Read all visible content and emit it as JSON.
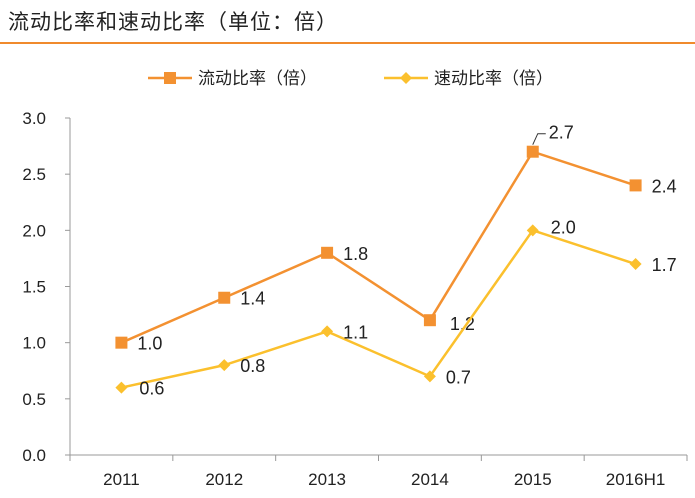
{
  "chart_data": {
    "type": "line",
    "title": "流动比率和速动比率（单位：倍）",
    "categories": [
      "2011",
      "2012",
      "2013",
      "2014",
      "2015",
      "2016H1"
    ],
    "ylim": [
      0,
      3
    ],
    "yticks": [
      "0.0",
      "0.5",
      "1.0",
      "1.5",
      "2.0",
      "2.5",
      "3.0"
    ],
    "legend_position": "top",
    "series": [
      {
        "name": "流动比率（倍）",
        "color": "#f39131",
        "marker": "square",
        "values": [
          1.0,
          1.4,
          1.8,
          1.2,
          2.7,
          2.4
        ],
        "labels": [
          "1.0",
          "1.4",
          "1.8",
          "1.2",
          "2.7",
          "2.4"
        ]
      },
      {
        "name": "速动比率（倍）",
        "color": "#fbc02d",
        "marker": "diamond",
        "values": [
          0.6,
          0.8,
          1.1,
          0.7,
          2.0,
          1.7
        ],
        "labels": [
          "0.6",
          "0.8",
          "1.1",
          "0.7",
          "2.0",
          "1.7"
        ]
      }
    ]
  }
}
